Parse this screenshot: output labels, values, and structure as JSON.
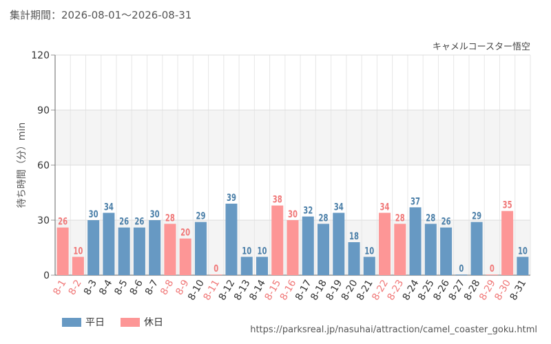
{
  "header": {
    "period_label": "集計期間：2026-08-01～2026-08-31",
    "attraction_name": "キャメルコースター悟空"
  },
  "footer": {
    "url": "https://parksreal.jp/nasuhai/attraction/camel_coaster_goku.html"
  },
  "legend": {
    "weekday_label": "平日",
    "holiday_label": "休日"
  },
  "colors": {
    "weekday": "#6799c3",
    "weekday_text": "#4b7fa8",
    "holiday": "#fd9696",
    "holiday_text": "#f07878"
  },
  "chart_data": {
    "type": "bar",
    "title": "キャメルコースター悟空",
    "ylabel": "待ち時間（分）min",
    "xlabel": "",
    "ylim": [
      0,
      120
    ],
    "yticks": [
      0,
      30,
      60,
      90,
      120
    ],
    "grid": true,
    "legend_position": "bottom-left",
    "categories": [
      "8-1",
      "8-2",
      "8-3",
      "8-4",
      "8-5",
      "8-6",
      "8-7",
      "8-8",
      "8-9",
      "8-10",
      "8-11",
      "8-12",
      "8-13",
      "8-14",
      "8-15",
      "8-16",
      "8-17",
      "8-18",
      "8-19",
      "8-20",
      "8-21",
      "8-22",
      "8-23",
      "8-24",
      "8-25",
      "8-26",
      "8-27",
      "8-28",
      "8-29",
      "8-30",
      "8-31"
    ],
    "values": [
      26,
      10,
      30,
      34,
      26,
      26,
      30,
      28,
      20,
      29,
      0,
      39,
      10,
      10,
      38,
      30,
      32,
      28,
      34,
      18,
      10,
      34,
      28,
      37,
      28,
      26,
      0,
      29,
      0,
      35,
      10
    ],
    "day_type": [
      "holiday",
      "holiday",
      "weekday",
      "weekday",
      "weekday",
      "weekday",
      "weekday",
      "holiday",
      "holiday",
      "weekday",
      "holiday",
      "weekday",
      "weekday",
      "weekday",
      "holiday",
      "holiday",
      "weekday",
      "weekday",
      "weekday",
      "weekday",
      "weekday",
      "holiday",
      "holiday",
      "weekday",
      "weekday",
      "weekday",
      "weekday",
      "weekday",
      "holiday",
      "holiday",
      "weekday"
    ],
    "series": [
      {
        "name": "平日"
      },
      {
        "name": "休日"
      }
    ]
  }
}
